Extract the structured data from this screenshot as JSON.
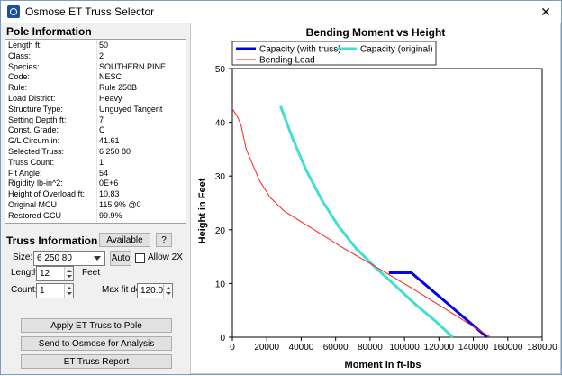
{
  "window": {
    "title": "Osmose ET Truss Selector",
    "close_glyph": "✕"
  },
  "pole": {
    "heading": "Pole Information",
    "rows": [
      {
        "label": "Length ft:",
        "value": "50"
      },
      {
        "label": "Class:",
        "value": "2"
      },
      {
        "label": "Species:",
        "value": "SOUTHERN PINE"
      },
      {
        "label": "Code:",
        "value": "NESC"
      },
      {
        "label": "Rule:",
        "value": "Rule 250B"
      },
      {
        "label": "Load District:",
        "value": "Heavy"
      },
      {
        "label": "Structure Type:",
        "value": "Unguyed Tangent"
      },
      {
        "label": "Setting Depth ft:",
        "value": "7"
      },
      {
        "label": "Const. Grade:",
        "value": "C"
      },
      {
        "label": "G/L Circum in:",
        "value": "41.61"
      },
      {
        "label": "Selected Truss:",
        "value": "6 250 80"
      },
      {
        "label": "Truss Count:",
        "value": "1"
      },
      {
        "label": "Fit Angle:",
        "value": "54"
      },
      {
        "label": "Rigidity lb-in^2:",
        "value": "0E+6"
      },
      {
        "label": "Height of Overload ft:",
        "value": "10.83"
      },
      {
        "label": "Original MCU",
        "value": "115.9% @0"
      },
      {
        "label": "Restored GCU",
        "value": "99.9%"
      }
    ]
  },
  "truss": {
    "heading": "Truss Information",
    "available_label": "Available",
    "help_label": "?",
    "size_label": "Size:",
    "size_value": "6 250 80",
    "auto_label": "Auto",
    "allow2x_label": "Allow 2X",
    "length_label": "Length:",
    "length_value": "12",
    "feet_label": "Feet",
    "count_label": "Count:",
    "count_value": "1",
    "maxfit_label": "Max fit deg:",
    "maxfit_value": "120.0"
  },
  "actions": {
    "apply_label": "Apply ET Truss to Pole",
    "send_label": "Send to Osmose for Analysis",
    "report_label": "ET Truss Report"
  },
  "chart_data": {
    "type": "line",
    "title": "Bending Moment vs Height",
    "xlabel": "Moment in ft-lbs",
    "ylabel": "Height in Feet",
    "xlim": [
      0,
      180000
    ],
    "ylim": [
      0,
      50
    ],
    "xticks": [
      "0",
      "20000",
      "40000",
      "60000",
      "80000",
      "100000",
      "120000",
      "140000",
      "160000",
      "180000"
    ],
    "yticks": [
      "0",
      "10",
      "20",
      "30",
      "40",
      "50"
    ],
    "grid": false,
    "legend_position": "top",
    "series": [
      {
        "name": "Capacity (with truss)",
        "color": "#0000ee",
        "points": [
          [
            91000,
            12
          ],
          [
            104000,
            12
          ],
          [
            148000,
            0
          ]
        ]
      },
      {
        "name": "Capacity (original)",
        "color": "#40e0d0",
        "points": [
          [
            28000,
            43
          ],
          [
            35000,
            37
          ],
          [
            43000,
            31
          ],
          [
            52000,
            25.5
          ],
          [
            62000,
            20.5
          ],
          [
            72000,
            16.5
          ],
          [
            83000,
            13
          ],
          [
            95000,
            9.5
          ],
          [
            106000,
            6.2
          ],
          [
            118000,
            3
          ],
          [
            128000,
            0
          ]
        ]
      },
      {
        "name": "Bending Load",
        "color": "#ff2020",
        "points": [
          [
            0,
            42.5
          ],
          [
            3000,
            41
          ],
          [
            5000,
            39.5
          ],
          [
            6000,
            38
          ],
          [
            8000,
            35
          ],
          [
            12000,
            32
          ],
          [
            16000,
            29
          ],
          [
            22000,
            26
          ],
          [
            30000,
            23.5
          ],
          [
            45000,
            20.5
          ],
          [
            65000,
            16.5
          ],
          [
            85000,
            12.8
          ],
          [
            105000,
            9
          ],
          [
            125000,
            5
          ],
          [
            150000,
            0
          ]
        ]
      }
    ]
  }
}
